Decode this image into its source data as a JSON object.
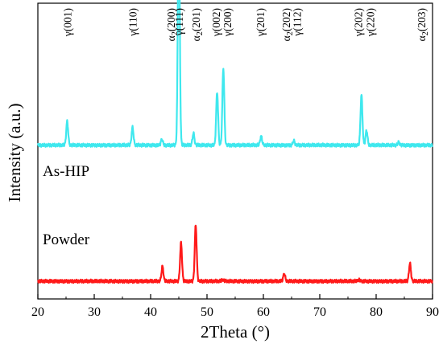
{
  "chart_data": {
    "type": "line",
    "title": "",
    "xlabel": "2Theta (°)",
    "ylabel": "Intensity (a.u.)",
    "xlim": [
      20,
      90
    ],
    "xticks": [
      20,
      30,
      40,
      50,
      60,
      70,
      80,
      90
    ],
    "y_scale": "arbitrary units, no tick labels",
    "grid": false,
    "series": [
      {
        "name": "As-HIP",
        "color": "#3fe8ee",
        "baseline": 0.52,
        "peaks": [
          {
            "x": 25.2,
            "h": 0.08
          },
          {
            "x": 36.8,
            "h": 0.06
          },
          {
            "x": 42.0,
            "h": 0.02
          },
          {
            "x": 45.0,
            "h": 0.78
          },
          {
            "x": 47.6,
            "h": 0.04
          },
          {
            "x": 51.8,
            "h": 0.18
          },
          {
            "x": 52.9,
            "h": 0.26
          },
          {
            "x": 59.6,
            "h": 0.03
          },
          {
            "x": 65.4,
            "h": 0.015
          },
          {
            "x": 77.4,
            "h": 0.17
          },
          {
            "x": 78.3,
            "h": 0.05
          },
          {
            "x": 84.0,
            "h": 0.01
          }
        ]
      },
      {
        "name": "Powder",
        "color": "#ff1a1a",
        "baseline": 0.06,
        "peaks": [
          {
            "x": 42.1,
            "h": 0.05
          },
          {
            "x": 45.4,
            "h": 0.13
          },
          {
            "x": 48.0,
            "h": 0.19
          },
          {
            "x": 52.8,
            "h": 0.005
          },
          {
            "x": 63.7,
            "h": 0.025
          },
          {
            "x": 76.9,
            "h": 0.005
          },
          {
            "x": 86.0,
            "h": 0.06
          }
        ]
      }
    ],
    "peak_labels": [
      {
        "x": 25.2,
        "phase": "γ",
        "sub": "",
        "hkl": "(001)"
      },
      {
        "x": 36.8,
        "phase": "γ",
        "sub": "",
        "hkl": "(110)"
      },
      {
        "x": 43.6,
        "phase": "α",
        "sub": "2",
        "hkl": "(200)"
      },
      {
        "x": 45.0,
        "phase": "γ",
        "sub": "",
        "hkl": "(111)"
      },
      {
        "x": 48.0,
        "phase": "α",
        "sub": "2",
        "hkl": "(201)"
      },
      {
        "x": 51.6,
        "phase": "γ",
        "sub": "",
        "hkl": "(002)"
      },
      {
        "x": 53.6,
        "phase": "γ",
        "sub": "",
        "hkl": "(200)"
      },
      {
        "x": 59.4,
        "phase": "γ",
        "sub": "",
        "hkl": "(201)"
      },
      {
        "x": 64.0,
        "phase": "α",
        "sub": "2",
        "hkl": "(202)"
      },
      {
        "x": 65.9,
        "phase": "γ",
        "sub": "",
        "hkl": "(112)"
      },
      {
        "x": 76.8,
        "phase": "γ",
        "sub": "",
        "hkl": "(202)"
      },
      {
        "x": 78.9,
        "phase": "γ",
        "sub": "",
        "hkl": "(220)"
      },
      {
        "x": 88.0,
        "phase": "α",
        "sub": "2",
        "hkl": "(203)"
      }
    ]
  }
}
